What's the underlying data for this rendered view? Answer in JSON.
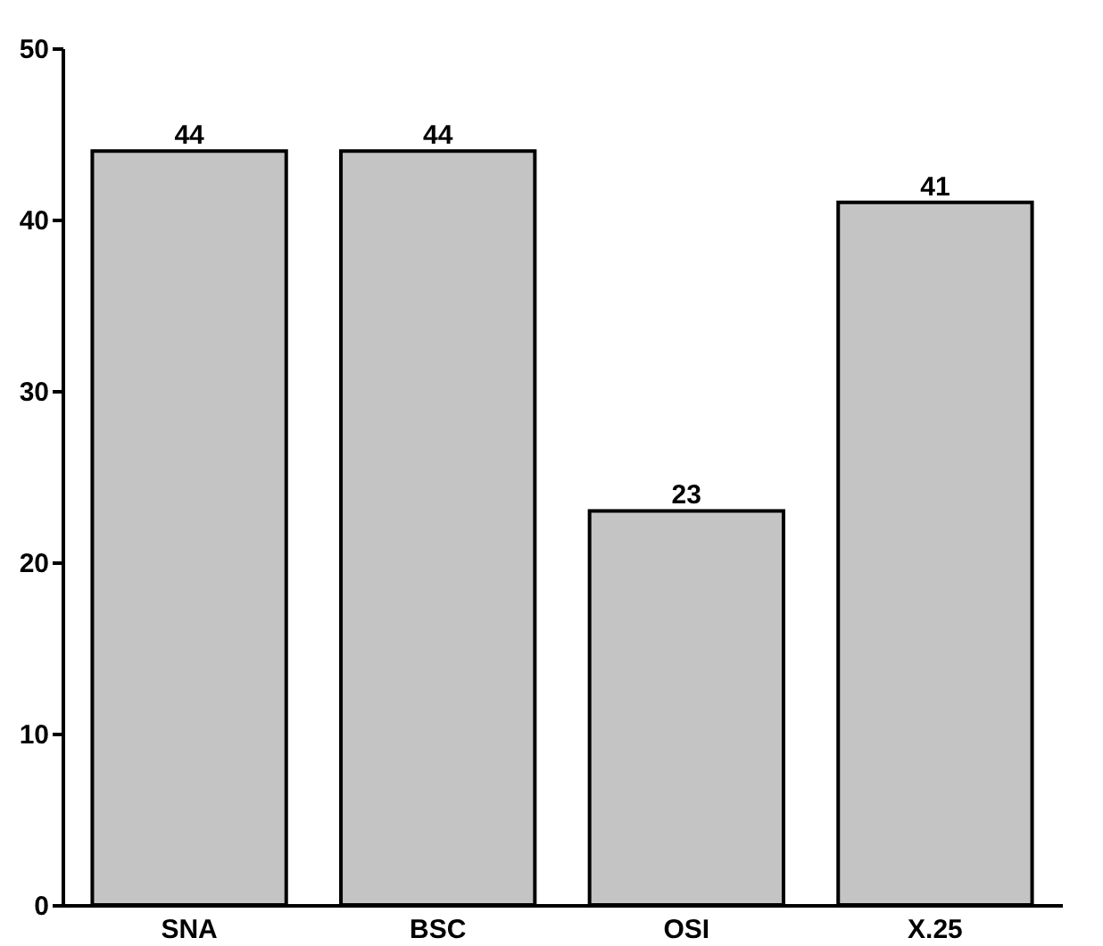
{
  "chart_data": {
    "type": "bar",
    "categories": [
      "SNA",
      "BSC",
      "OSI",
      "X.25"
    ],
    "values": [
      44,
      44,
      23,
      41
    ],
    "color": "#c4c4c4",
    "ylim": [
      0,
      50
    ],
    "yticks": [
      0,
      10,
      20,
      30,
      40,
      50
    ],
    "grid": false,
    "data_labels": true
  }
}
